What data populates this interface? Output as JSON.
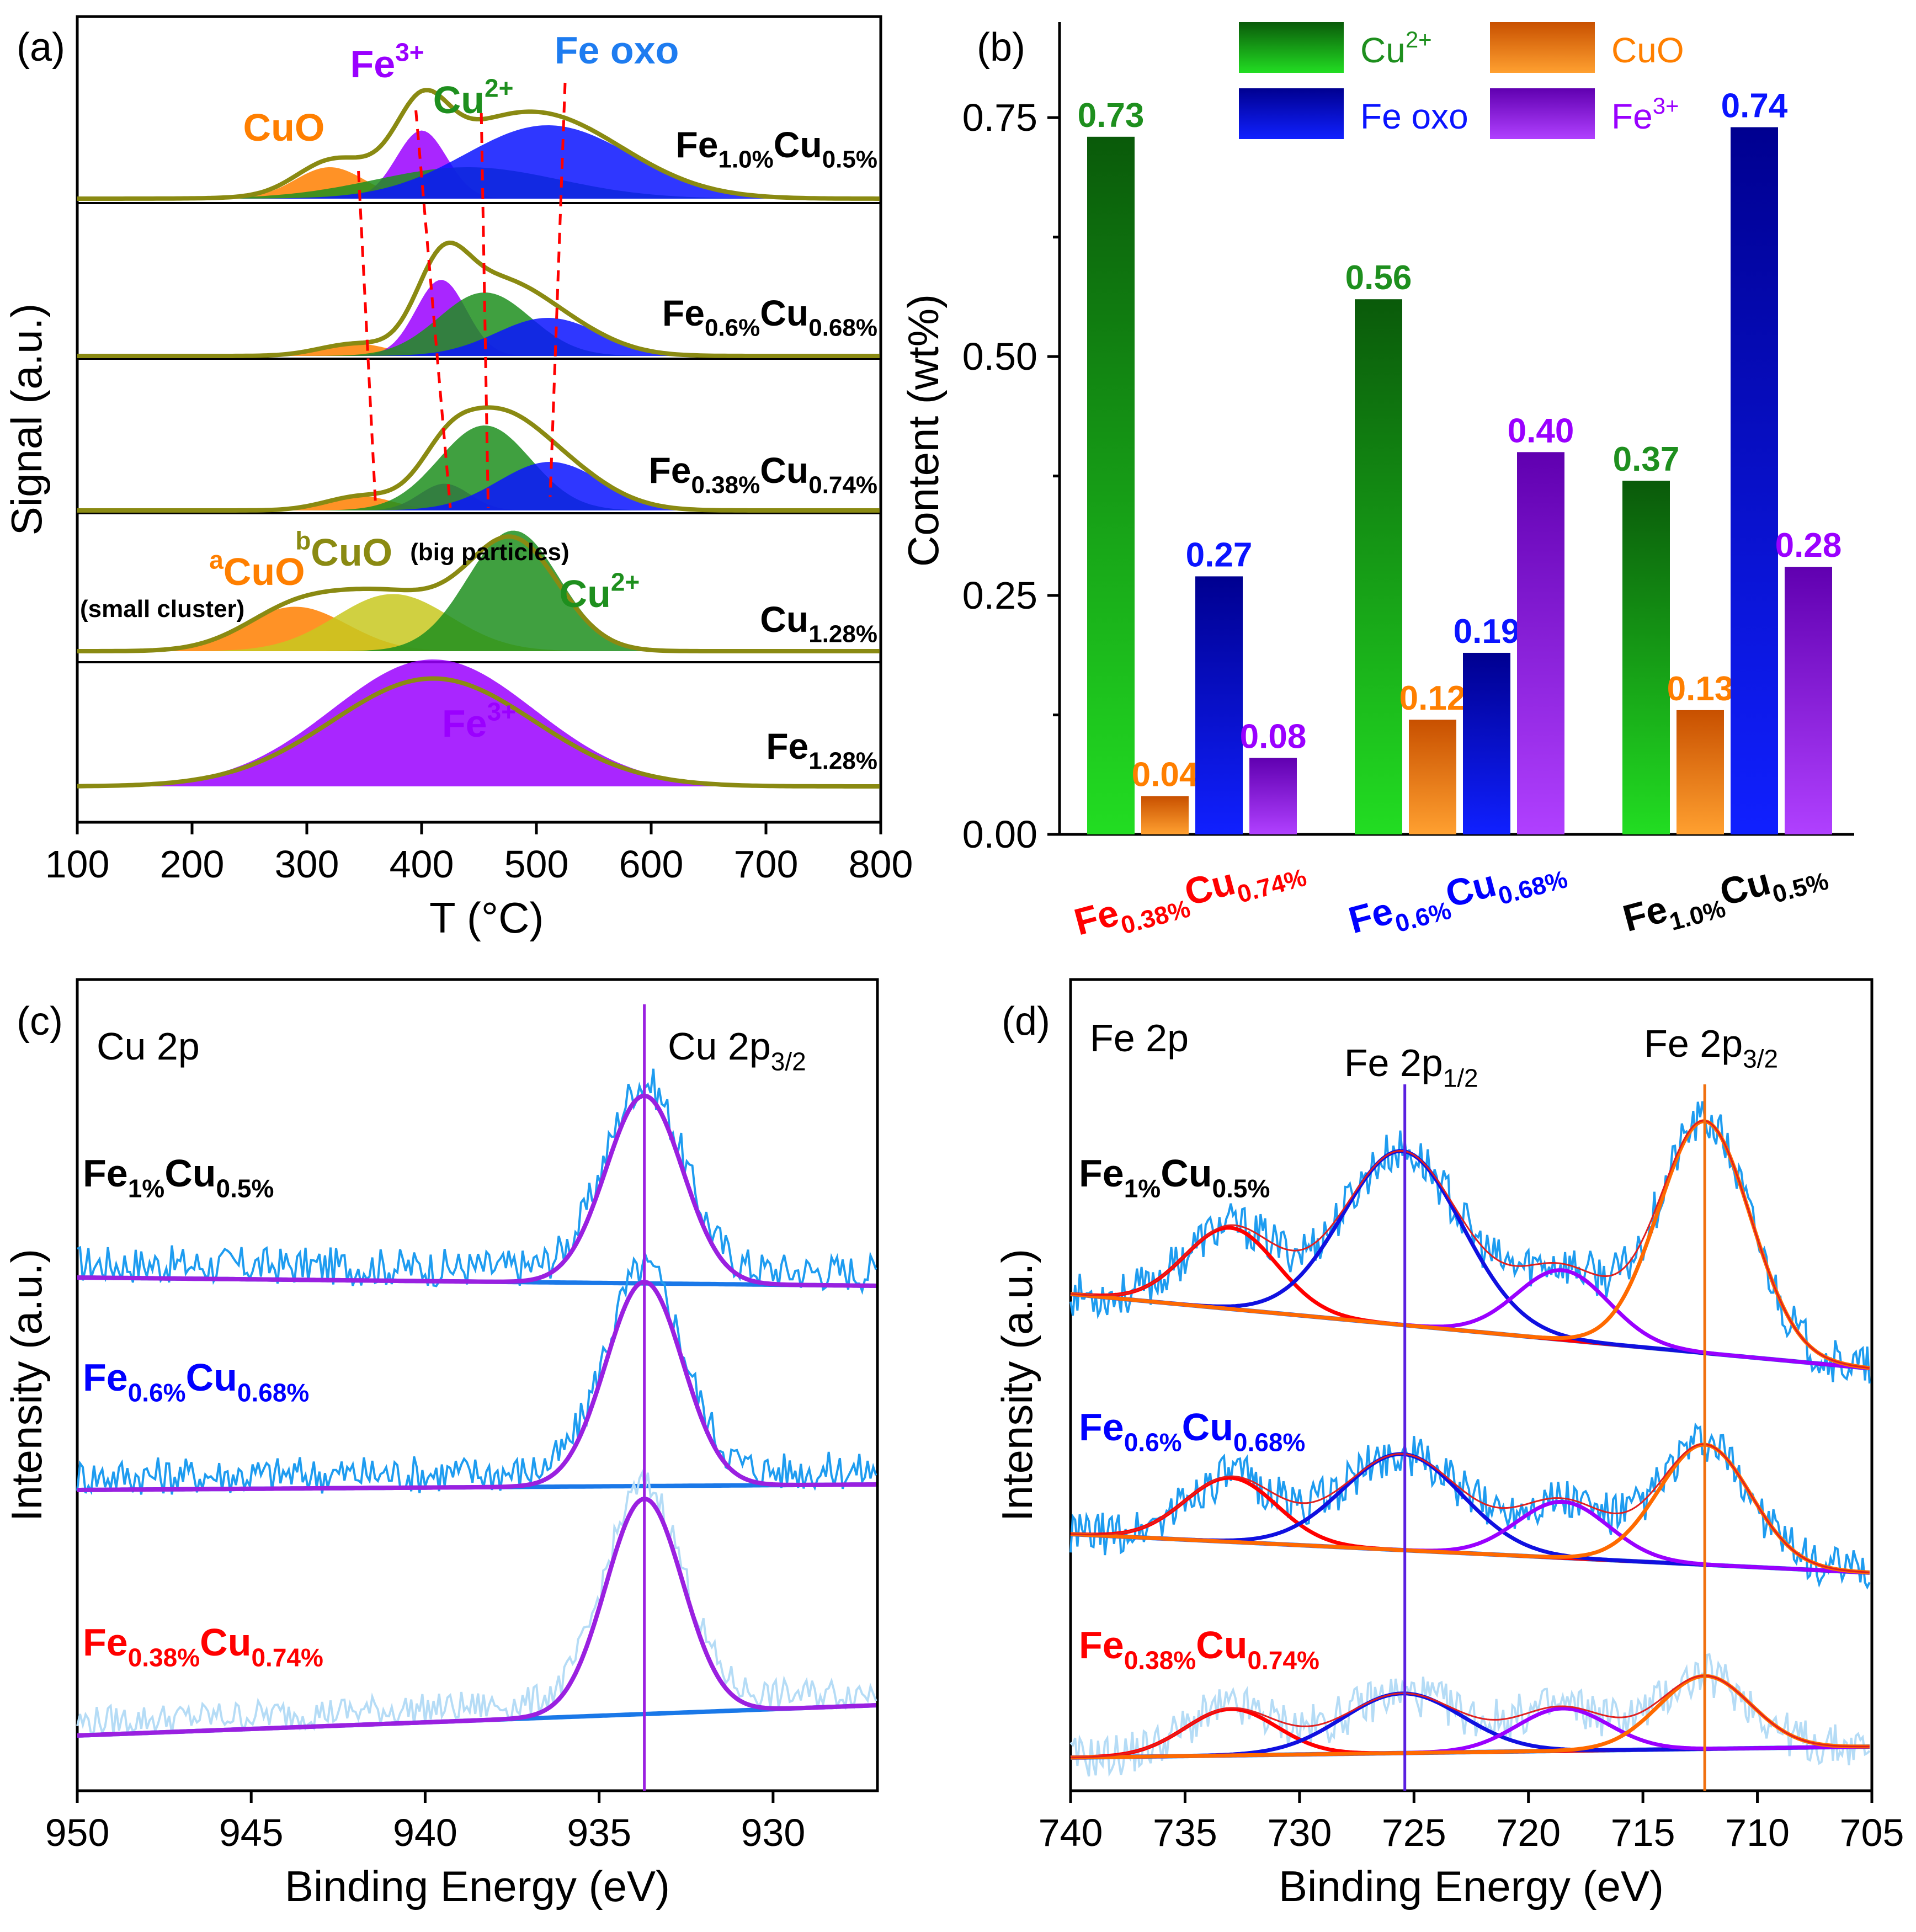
{
  "colors": {
    "cu2": "#1e8f1e",
    "cuo": "#ff7f00",
    "feoxo": "#0a14ff",
    "fe3": "#9a00ff",
    "olive": "#8a8a12",
    "xpsRaw": "#1e9cf0",
    "red": "#ff0000",
    "blue": "#0000ff",
    "dashed": "#ff0000"
  },
  "chart_data": [
    {
      "panel": "(a)",
      "type": "line",
      "title": "",
      "xlabel": "T (°C)",
      "ylabel": "Signal (a.u.)",
      "xlim": [
        100,
        800
      ],
      "xticks": [
        100,
        200,
        300,
        400,
        500,
        600,
        700,
        800
      ],
      "tick_labels": [
        "100",
        "200",
        "300",
        "400",
        "500",
        "600",
        "700",
        "800"
      ],
      "series": [
        {
          "name": "Fe1.0%Cu0.5%",
          "peaks": [
            {
              "species": "CuO",
              "center": 320,
              "height": 0.3
            },
            {
              "species": "Fe3+",
              "center": 400,
              "height": 0.65
            },
            {
              "species": "Cu2+",
              "center": 440,
              "height": 0.3
            },
            {
              "species": "Fe oxo",
              "center": 510,
              "height": 0.7
            }
          ]
        },
        {
          "name": "Fe0.6%Cu0.68%",
          "peaks": [
            {
              "species": "CuO",
              "center": 340,
              "height": 0.1
            },
            {
              "species": "Fe3+",
              "center": 417,
              "height": 0.6
            },
            {
              "species": "Cu2+",
              "center": 455,
              "height": 0.5
            },
            {
              "species": "Fe oxo",
              "center": 510,
              "height": 0.3
            }
          ]
        },
        {
          "name": "Fe0.38%Cu0.74%",
          "peaks": [
            {
              "species": "CuO",
              "center": 345,
              "height": 0.12
            },
            {
              "species": "Fe3+",
              "center": 420,
              "height": 0.22
            },
            {
              "species": "Cu2+",
              "center": 455,
              "height": 0.7
            },
            {
              "species": "Fe oxo",
              "center": 512,
              "height": 0.4
            }
          ]
        },
        {
          "name": "Cu1.28%",
          "peaks": [
            {
              "species": "aCuO",
              "center": 290,
              "height": 0.35
            },
            {
              "species": "bCuO",
              "center": 375,
              "height": 0.45
            },
            {
              "species": "Cu2+",
              "center": 480,
              "height": 0.95
            }
          ]
        },
        {
          "name": "Fe1.28%",
          "peaks": [
            {
              "species": "Fe3+",
              "center": 410,
              "height": 1.0
            }
          ]
        }
      ],
      "annotations": {
        "cuo": "CuO",
        "fe3_base": "Fe",
        "fe3_sup": "3+",
        "cu2_base": "Cu",
        "cu2_sup": "2+",
        "feoxo": "Fe oxo",
        "a_sup": "a",
        "b_sup": "b",
        "cuo_small": "(small cluster)",
        "cuo_big": "(big particles)"
      },
      "sample_labels": [
        {
          "base1": "Fe",
          "sub1": "1.0%",
          "base2": "Cu",
          "sub2": "0.5%"
        },
        {
          "base1": "Fe",
          "sub1": "0.6%",
          "base2": "Cu",
          "sub2": "0.68%"
        },
        {
          "base1": "Fe",
          "sub1": "0.38%",
          "base2": "Cu",
          "sub2": "0.74%"
        },
        {
          "base1": "Cu",
          "sub1": "1.28%"
        },
        {
          "base1": "Fe",
          "sub1": "1.28%"
        }
      ]
    },
    {
      "panel": "(b)",
      "type": "bar",
      "title": "",
      "xlabel": "",
      "ylabel": "Content (wt%)",
      "ylim": [
        0,
        0.85
      ],
      "yticks": [
        0.0,
        0.25,
        0.5,
        0.75
      ],
      "tick_labels": [
        "0.00",
        "0.25",
        "0.50",
        "0.75"
      ],
      "categories": [
        {
          "base1": "Fe",
          "sub1": "0.38%",
          "base2": "Cu",
          "sub2": "0.74%",
          "color": "#ff0000"
        },
        {
          "base1": "Fe",
          "sub1": "0.6%",
          "base2": "Cu",
          "sub2": "0.68%",
          "color": "#0000ff"
        },
        {
          "base1": "Fe",
          "sub1": "1.0%",
          "base2": "Cu",
          "sub2": "0.5%",
          "color": "#000000"
        }
      ],
      "series": [
        {
          "name": "Cu2+",
          "label_base": "Cu",
          "label_sup": "2+",
          "values": [
            0.73,
            0.56,
            0.37
          ],
          "labels": [
            "0.73",
            "0.56",
            "0.37"
          ]
        },
        {
          "name": "CuO",
          "label_base": "CuO",
          "label_sup": "",
          "values": [
            0.04,
            0.12,
            0.13
          ],
          "labels": [
            "0.04",
            "0.12",
            "0.13"
          ]
        },
        {
          "name": "Fe oxo",
          "label_base": "Fe oxo",
          "label_sup": "",
          "values": [
            0.27,
            0.19,
            0.74
          ],
          "labels": [
            "0.27",
            "0.19",
            "0.74"
          ]
        },
        {
          "name": "Fe3+",
          "label_base": "Fe",
          "label_sup": "3+",
          "values": [
            0.08,
            0.4,
            0.28
          ],
          "labels": [
            "0.08",
            "0.40",
            "0.28"
          ]
        }
      ],
      "legend": "top"
    },
    {
      "panel": "(c)",
      "type": "line",
      "title": "Cu 2p",
      "xlabel": "Binding Energy (eV)",
      "ylabel": "Intensity (a.u.)",
      "xlim": [
        950,
        927
      ],
      "xticks": [
        950,
        945,
        940,
        935,
        930
      ],
      "tick_labels": [
        "950",
        "945",
        "940",
        "935",
        "930"
      ],
      "reference_line": 933.7,
      "reference_label": {
        "base": "Cu 2p",
        "sub": "3/2"
      },
      "series": [
        {
          "name": "Fe1%Cu0.5%",
          "peak_center": 933.7,
          "fwhm": 2.6,
          "label": {
            "base1": "Fe",
            "sub1": "1%",
            "base2": "Cu",
            "sub2": "0.5%"
          },
          "label_color": "#000000"
        },
        {
          "name": "Fe0.6%Cu0.68%",
          "peak_center": 933.7,
          "fwhm": 2.6,
          "label": {
            "base1": "Fe",
            "sub1": "0.6%",
            "base2": "Cu",
            "sub2": "0.68%"
          },
          "label_color": "#0000ff"
        },
        {
          "name": "Fe0.38%Cu0.74%",
          "peak_center": 933.7,
          "fwhm": 2.6,
          "label": {
            "base1": "Fe",
            "sub1": "0.38%",
            "base2": "Cu",
            "sub2": "0.74%"
          },
          "label_color": "#ff0000"
        }
      ]
    },
    {
      "panel": "(d)",
      "type": "line",
      "title": "Fe 2p",
      "xlabel": "Binding Energy (eV)",
      "ylabel": "Intensity (a.u.)",
      "xlim": [
        740,
        705
      ],
      "xticks": [
        740,
        735,
        730,
        725,
        720,
        715,
        710,
        705
      ],
      "tick_labels": [
        "740",
        "735",
        "730",
        "725",
        "720",
        "715",
        "710",
        "705"
      ],
      "reference_lines": [
        {
          "value": 725.4,
          "label": {
            "base": "Fe 2p",
            "sub": "1/2"
          },
          "color": "#5a20e0"
        },
        {
          "value": 712.3,
          "label": {
            "base": "Fe 2p",
            "sub": "3/2"
          },
          "color": "#f07010"
        }
      ],
      "fit_components": [
        {
          "center": 733.0,
          "color": "#ff0000"
        },
        {
          "center": 725.5,
          "color": "#1010e0"
        },
        {
          "center": 718.5,
          "color": "#9a00ff"
        },
        {
          "center": 712.3,
          "color": "#ff6a00"
        }
      ],
      "series": [
        {
          "name": "Fe1%Cu0.5%",
          "amplitudes": [
            0.35,
            0.75,
            0.3,
            1.0
          ],
          "label": {
            "base1": "Fe",
            "sub1": "1%",
            "base2": "Cu",
            "sub2": "0.5%"
          },
          "label_color": "#000000"
        },
        {
          "name": "Fe0.6%Cu0.68%",
          "amplitudes": [
            0.4,
            0.6,
            0.35,
            0.75
          ],
          "label": {
            "base1": "Fe",
            "sub1": "0.6%",
            "base2": "Cu",
            "sub2": "0.68%"
          },
          "label_color": "#0000ff"
        },
        {
          "name": "Fe0.38%Cu0.74%",
          "amplitudes": [
            0.35,
            0.45,
            0.32,
            0.55
          ],
          "label": {
            "base1": "Fe",
            "sub1": "0.38%",
            "base2": "Cu",
            "sub2": "0.74%"
          },
          "label_color": "#ff0000"
        }
      ]
    }
  ]
}
